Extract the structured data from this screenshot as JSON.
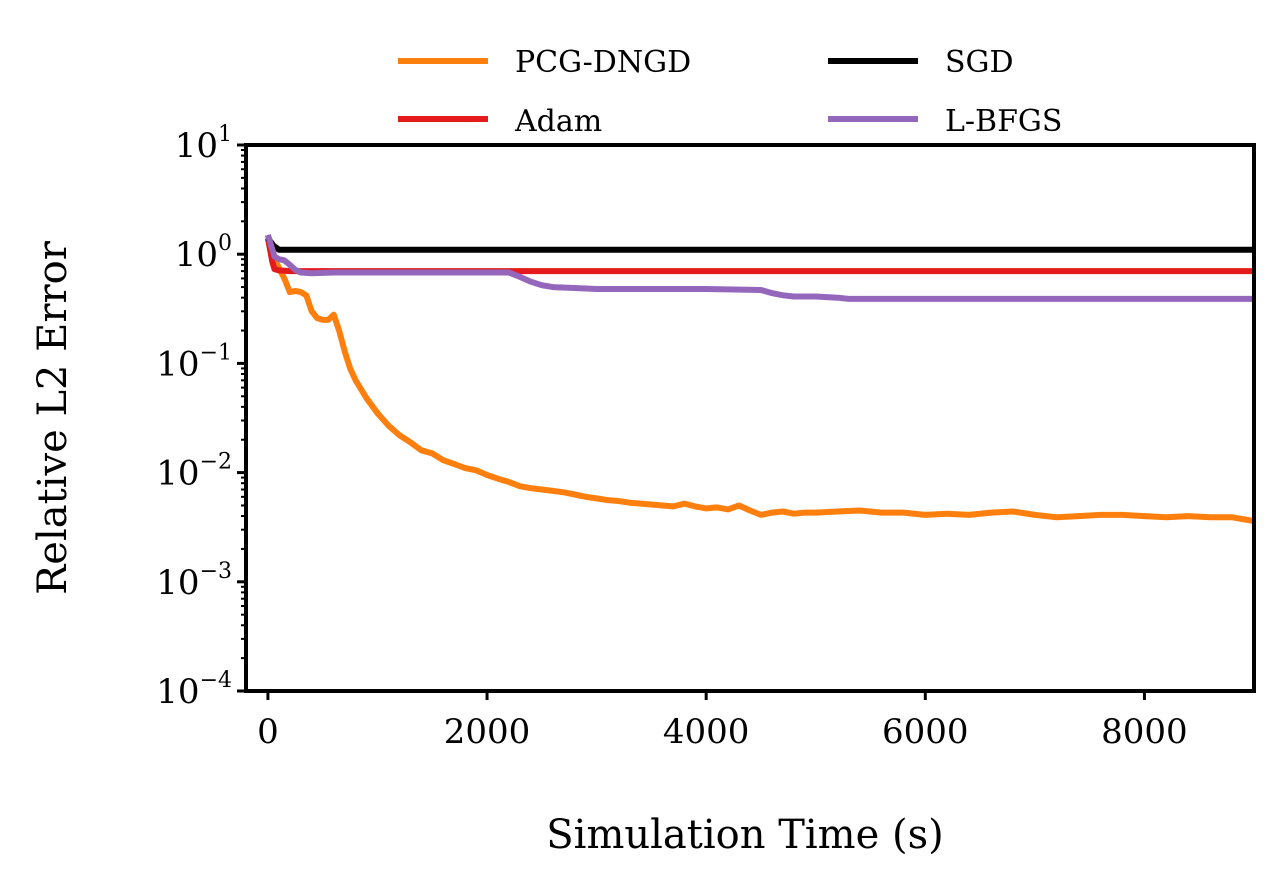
{
  "chart_data": {
    "type": "line",
    "title": "",
    "xlabel": "Simulation Time (s)",
    "ylabel": "Relative L2 Error",
    "xlim": [
      -200,
      9000
    ],
    "ylim": [
      0.0001,
      10
    ],
    "yscale": "log",
    "grid": false,
    "legend_position": "top (outside, 2 columns)",
    "x_ticks": [
      {
        "value": 0,
        "label": "0"
      },
      {
        "value": 2000,
        "label": "2000"
      },
      {
        "value": 4000,
        "label": "4000"
      },
      {
        "value": 6000,
        "label": "6000"
      },
      {
        "value": 8000,
        "label": "8000"
      }
    ],
    "y_ticks": [
      {
        "value": 10,
        "base": "10",
        "exp": "1"
      },
      {
        "value": 1,
        "base": "10",
        "exp": "0"
      },
      {
        "value": 0.1,
        "base": "10",
        "exp": "−1"
      },
      {
        "value": 0.01,
        "base": "10",
        "exp": "−2"
      },
      {
        "value": 0.001,
        "base": "10",
        "exp": "−3"
      },
      {
        "value": 0.0001,
        "base": "10",
        "exp": "−4"
      }
    ],
    "series": [
      {
        "name": "PCG-DNGD",
        "color": "#ff7f0e",
        "x": [
          0,
          30,
          60,
          100,
          150,
          200,
          250,
          300,
          350,
          400,
          450,
          500,
          550,
          600,
          650,
          700,
          750,
          800,
          900,
          1000,
          1100,
          1200,
          1300,
          1400,
          1500,
          1600,
          1700,
          1800,
          1900,
          2000,
          2100,
          2200,
          2300,
          2400,
          2500,
          2600,
          2700,
          2800,
          2900,
          3000,
          3100,
          3200,
          3300,
          3400,
          3500,
          3600,
          3700,
          3800,
          3900,
          4000,
          4100,
          4200,
          4300,
          4400,
          4500,
          4600,
          4700,
          4800,
          4900,
          5000,
          5200,
          5400,
          5600,
          5800,
          6000,
          6200,
          6400,
          6600,
          6800,
          7000,
          7200,
          7400,
          7600,
          7800,
          8000,
          8200,
          8400,
          8600,
          8800,
          9000
        ],
        "values": [
          1.5,
          1.2,
          0.9,
          0.75,
          0.6,
          0.45,
          0.46,
          0.45,
          0.42,
          0.3,
          0.26,
          0.25,
          0.25,
          0.28,
          0.2,
          0.13,
          0.09,
          0.07,
          0.048,
          0.035,
          0.027,
          0.022,
          0.019,
          0.016,
          0.015,
          0.013,
          0.012,
          0.011,
          0.0105,
          0.0095,
          0.0088,
          0.0082,
          0.0075,
          0.0072,
          0.007,
          0.0068,
          0.0066,
          0.0063,
          0.006,
          0.0058,
          0.0056,
          0.0055,
          0.0053,
          0.0052,
          0.0051,
          0.005,
          0.0049,
          0.0052,
          0.0049,
          0.0047,
          0.0048,
          0.0046,
          0.005,
          0.0045,
          0.0041,
          0.0043,
          0.0044,
          0.0042,
          0.0043,
          0.0043,
          0.0044,
          0.0045,
          0.0043,
          0.0043,
          0.0041,
          0.0042,
          0.0041,
          0.0043,
          0.0044,
          0.0041,
          0.0039,
          0.004,
          0.0041,
          0.0041,
          0.004,
          0.0039,
          0.004,
          0.0039,
          0.0039,
          0.0036
        ]
      },
      {
        "name": "Adam",
        "color": "#e41a1c",
        "x": [
          0,
          20,
          40,
          60,
          100,
          200,
          400,
          1000,
          2000,
          4000,
          6000,
          8000,
          9000
        ],
        "values": [
          1.4,
          1.1,
          0.85,
          0.73,
          0.71,
          0.7,
          0.7,
          0.7,
          0.7,
          0.7,
          0.7,
          0.7,
          0.7
        ]
      },
      {
        "name": "SGD",
        "color": "#000000",
        "x": [
          0,
          50,
          100,
          200,
          1000,
          3000,
          6000,
          9000
        ],
        "values": [
          1.4,
          1.2,
          1.1,
          1.1,
          1.1,
          1.1,
          1.1,
          1.1
        ]
      },
      {
        "name": "L-BFGS",
        "color": "#9467bd",
        "x": [
          0,
          30,
          60,
          100,
          150,
          200,
          250,
          300,
          400,
          600,
          800,
          1000,
          1500,
          2000,
          2200,
          2300,
          2400,
          2500,
          2600,
          2800,
          3000,
          3200,
          3500,
          4000,
          4500,
          4600,
          4700,
          4800,
          5000,
          5200,
          5300,
          5400,
          6000,
          7000,
          8000,
          9000
        ],
        "values": [
          1.5,
          1.2,
          0.95,
          0.9,
          0.88,
          0.8,
          0.72,
          0.68,
          0.67,
          0.68,
          0.68,
          0.68,
          0.68,
          0.68,
          0.68,
          0.62,
          0.56,
          0.52,
          0.5,
          0.49,
          0.48,
          0.48,
          0.48,
          0.48,
          0.47,
          0.44,
          0.42,
          0.41,
          0.41,
          0.4,
          0.39,
          0.39,
          0.39,
          0.39,
          0.39,
          0.39
        ]
      }
    ]
  }
}
